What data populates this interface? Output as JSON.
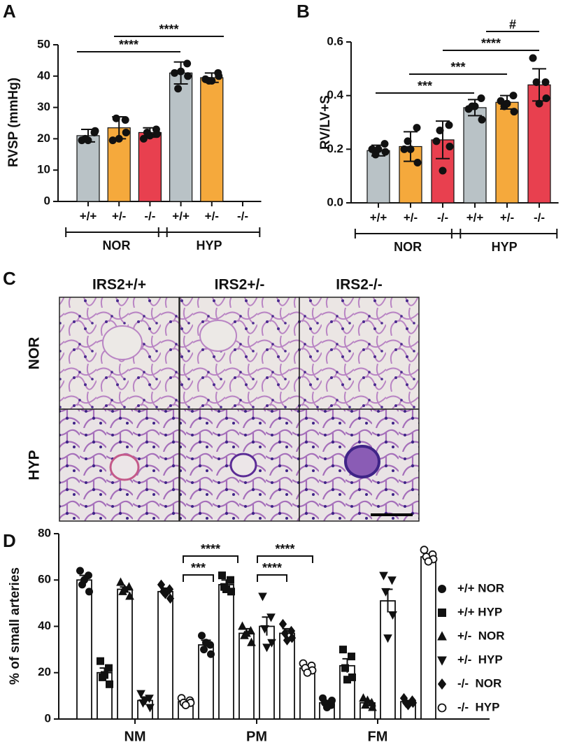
{
  "chart_data": [
    {
      "type": "bar",
      "label": "A",
      "ylabel": "RVSP (mmHg)",
      "categories": [
        "+/+",
        "+/-",
        "-/-",
        "+/+",
        "+/-",
        "-/-"
      ],
      "groups": [
        "NOR",
        "HYP"
      ],
      "colors": [
        "#b9c2c6",
        "#f5a93c",
        "#e8404f",
        "#b9c2c6",
        "#f5a93c",
        "#e8404f"
      ],
      "values": [
        21,
        23.5,
        22,
        41,
        39.5,
        null
      ],
      "errors": [
        2,
        3.5,
        1.5,
        3.5,
        1.5,
        null
      ],
      "points": [
        [
          19.5,
          22,
          20,
          22.5,
          19.5
        ],
        [
          19.5,
          26,
          26.5,
          22,
          20
        ],
        [
          20,
          23,
          22,
          21.5,
          21
        ],
        [
          41,
          44,
          36,
          40,
          41.5
        ],
        [
          39,
          41,
          38.5,
          40,
          38.5
        ],
        []
      ],
      "ylim": [
        0,
        50
      ],
      "yticks": [
        0,
        10,
        20,
        30,
        40,
        50
      ],
      "annotations": [
        "****",
        "****"
      ]
    },
    {
      "type": "bar",
      "label": "B",
      "ylabel": "RV/LV+S",
      "categories": [
        "+/+",
        "+/-",
        "-/-",
        "+/+",
        "+/-",
        "-/-"
      ],
      "groups": [
        "NOR",
        "HYP"
      ],
      "colors": [
        "#b9c2c6",
        "#f5a93c",
        "#e8404f",
        "#b9c2c6",
        "#f5a93c",
        "#e8404f"
      ],
      "values": [
        0.195,
        0.21,
        0.235,
        0.355,
        0.375,
        0.44
      ],
      "errors": [
        0.02,
        0.055,
        0.07,
        0.03,
        0.025,
        0.06
      ],
      "points": [
        [
          0.2,
          0.22,
          0.18,
          0.19,
          0.2
        ],
        [
          0.2,
          0.28,
          0.23,
          0.15,
          0.2
        ],
        [
          0.23,
          0.29,
          0.27,
          0.21,
          0.12
        ],
        [
          0.35,
          0.39,
          0.36,
          0.31,
          0.36
        ],
        [
          0.38,
          0.4,
          0.36,
          0.34,
          0.37
        ],
        [
          0.54,
          0.45,
          0.45,
          0.39,
          0.37
        ]
      ],
      "ylim": [
        0,
        0.6
      ],
      "yticks": [
        {
          "value": 0,
          "label": "0.0"
        },
        0.2,
        0.4,
        0.6
      ],
      "annotations": [
        "***",
        "***",
        "****",
        "#"
      ]
    },
    {
      "type": "grouped_bar",
      "label": "D",
      "ylabel": "% of small arteries",
      "categories": [
        "NM",
        "PM",
        "FM"
      ],
      "series": [
        {
          "name": "+/+ NOR",
          "marker": "circle",
          "values": [
            60,
            32,
            7
          ],
          "errors": [
            2,
            2,
            1
          ],
          "points": [
            [
              64,
              62,
              58,
              55,
              60
            ],
            [
              36,
              32,
              30,
              28,
              33
            ],
            [
              9,
              6,
              7,
              8,
              5
            ]
          ]
        },
        {
          "name": "+/+ HYP",
          "marker": "square",
          "values": [
            20,
            58,
            23
          ],
          "errors": [
            2,
            2,
            3
          ],
          "points": [
            [
              25,
              22,
              18,
              15,
              19
            ],
            [
              62,
              60,
              57,
              55,
              56
            ],
            [
              30,
              27,
              22,
              18,
              17
            ]
          ]
        },
        {
          "name": "+/-  NOR",
          "marker": "triangle",
          "values": [
            56,
            37,
            7
          ],
          "errors": [
            1,
            2,
            1
          ],
          "points": [
            [
              59,
              57,
              55,
              53,
              56
            ],
            [
              40,
              38,
              36,
              33,
              37
            ],
            [
              9,
              7,
              6,
              5,
              8
            ]
          ]
        },
        {
          "name": "+/-  HYP",
          "marker": "triangle-down",
          "values": [
            8,
            40,
            51
          ],
          "errors": [
            1.5,
            4,
            5
          ],
          "points": [
            [
              11,
              9,
              7,
              5,
              8
            ],
            [
              53,
              44,
              39,
              33,
              31
            ],
            [
              62,
              60,
              55,
              45,
              35
            ]
          ]
        },
        {
          "name": "-/-  NOR",
          "marker": "diamond",
          "values": [
            55,
            37,
            7.5
          ],
          "errors": [
            1.5,
            2,
            0.5
          ],
          "points": [
            [
              58,
              56,
              55,
              52,
              54
            ],
            [
              41,
              38,
              37,
              35,
              34
            ],
            [
              9,
              8,
              7,
              7,
              6
            ]
          ]
        },
        {
          "name": "-/-  HYP",
          "marker": "open-circle",
          "values": [
            7.5,
            22,
            70
          ],
          "errors": [
            0.5,
            1,
            1
          ],
          "points": [
            [
              9,
              8,
              7,
              7,
              6
            ],
            [
              24,
              23,
              22,
              21,
              20
            ],
            [
              73,
              71,
              70,
              69,
              68
            ]
          ]
        }
      ],
      "ylim": [
        0,
        80
      ],
      "yticks": [
        0,
        20,
        40,
        60,
        80
      ],
      "annotations": [
        "****",
        "***",
        "****",
        "****"
      ]
    }
  ],
  "image_panel": {
    "label": "C",
    "columns": [
      "IRS2+/+",
      "IRS2+/-",
      "IRS2-/-"
    ],
    "rows": [
      "NOR",
      "HYP"
    ]
  }
}
